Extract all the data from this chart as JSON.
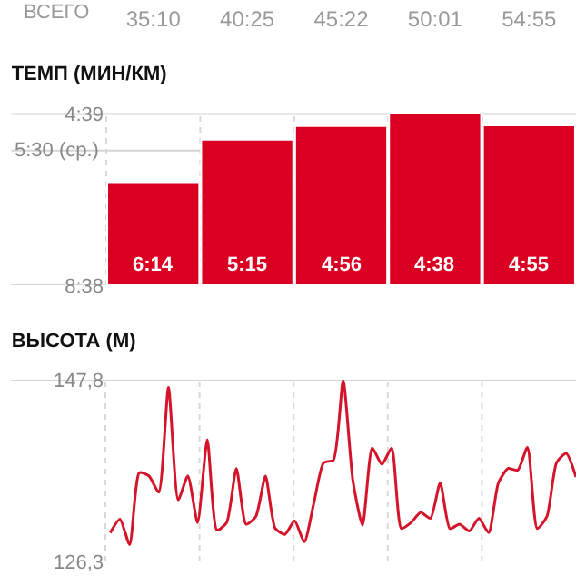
{
  "chart_data": [
    {
      "type": "bar",
      "title": "ТЕМП (МИН/КМ)",
      "annotations": [
        "ВСЕГО"
      ],
      "categories": [
        "35:10",
        "40:25",
        "45:22",
        "50:01",
        "54:55"
      ],
      "base": [
        8.6333,
        8.6333,
        8.6333,
        8.6333,
        8.6333
      ],
      "values": [
        -2.4,
        -3.3833,
        -3.7,
        -4.0,
        -3.7167
      ],
      "value_labels": [
        "6:14",
        "5:15",
        "4:56",
        "4:38",
        "4:55"
      ],
      "color": "#da0021",
      "ylim": [
        8.6333,
        4.62
      ],
      "yticks": [
        {
          "value": 4.65,
          "label": "4:39"
        },
        {
          "value": 8.6333,
          "label": "8:38"
        }
      ],
      "ref_lines": [
        {
          "axis": "y",
          "value": 5.5,
          "label": "5:30 (ср.)",
          "color": "#d4d4d4"
        }
      ],
      "grid": true
    },
    {
      "type": "line",
      "title": "ВЫСОТА (М)",
      "categories": [
        null,
        null,
        null,
        null,
        null,
        null,
        null,
        null,
        null,
        null,
        null,
        null,
        null,
        null,
        null,
        null,
        null,
        null,
        null,
        null,
        null,
        null,
        null,
        null,
        null,
        null,
        null,
        null,
        null,
        null,
        null,
        null,
        null,
        null,
        null,
        null,
        null,
        null,
        null,
        null,
        null,
        null,
        null,
        null,
        null,
        null,
        null,
        null,
        null
      ],
      "values": [
        129.7,
        131.3,
        128.3,
        136.8,
        136.4,
        134.5,
        146.9,
        133.6,
        136.4,
        130.9,
        140.7,
        130.0,
        130.9,
        137.3,
        130.7,
        131.6,
        136.4,
        130.2,
        129.5,
        131.1,
        128.6,
        133.3,
        138.0,
        138.3,
        147.7,
        135.9,
        130.6,
        139.7,
        137.8,
        139.7,
        130.2,
        130.9,
        132.1,
        131.4,
        135.6,
        130.2,
        130.7,
        129.9,
        131.4,
        129.7,
        135.6,
        137.3,
        137.1,
        139.8,
        130.2,
        131.6,
        138.0,
        139.1,
        136.3
      ],
      "color": "#d4142a",
      "ylim": [
        126.3,
        147.8
      ],
      "yticks": [
        {
          "value": 147.8,
          "label": "147,8"
        },
        {
          "value": 126.3,
          "label": "126,3"
        }
      ],
      "grid": true
    }
  ]
}
